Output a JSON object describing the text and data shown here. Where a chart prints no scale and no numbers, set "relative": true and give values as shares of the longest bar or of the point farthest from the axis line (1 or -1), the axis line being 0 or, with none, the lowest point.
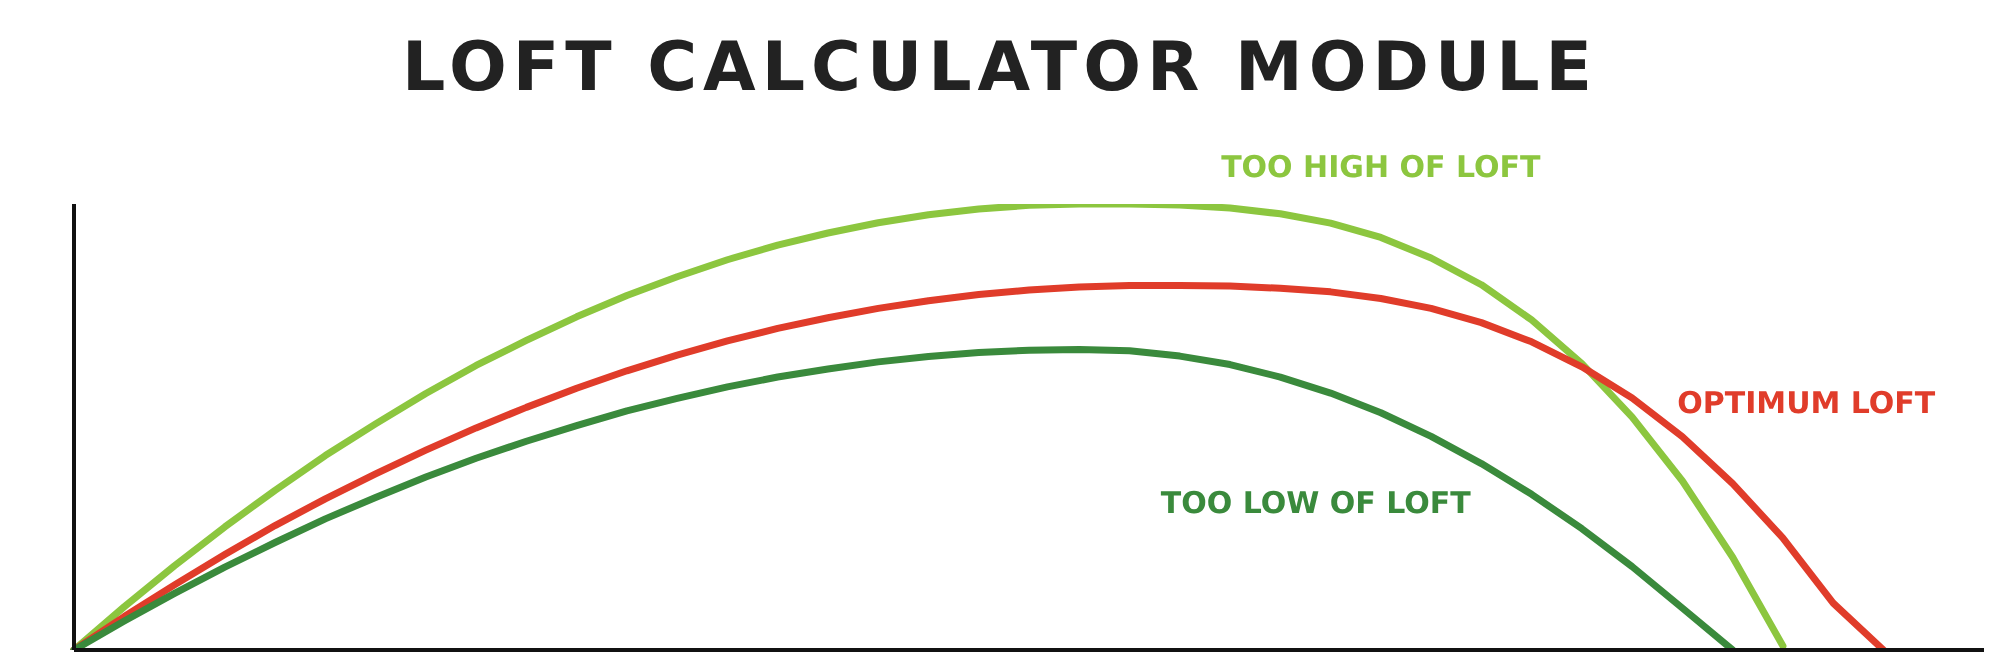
{
  "chart_data": {
    "type": "line",
    "title": "LOFT CALCULATOR MODULE",
    "relative": true,
    "legend": false,
    "grid": false,
    "marker": "none",
    "line_style": "solid",
    "categories": [
      null,
      null,
      null,
      null,
      null,
      null,
      null,
      null,
      null,
      null,
      null,
      null,
      null,
      null,
      null,
      null,
      null,
      null,
      null,
      null,
      null,
      null,
      null,
      null,
      null,
      null,
      null,
      null,
      null,
      null,
      null,
      null,
      null,
      null,
      null,
      null,
      null,
      null,
      null
    ],
    "series": [
      {
        "name": "TOO HIGH OF LOFT",
        "color": "#8cc63f",
        "values": [
          0,
          0.097,
          0.189,
          0.276,
          0.358,
          0.436,
          0.507,
          0.575,
          0.638,
          0.694,
          0.747,
          0.795,
          0.837,
          0.875,
          0.908,
          0.935,
          0.958,
          0.976,
          0.989,
          0.997,
          1,
          1,
          0.998,
          0.991,
          0.978,
          0.957,
          0.925,
          0.879,
          0.819,
          0.74,
          0.642,
          0.522,
          0.379,
          0.208,
          0.009,
          null,
          null,
          null,
          null
        ]
      },
      {
        "name": "OPTIMUM LOFT",
        "color": "#e03c2a",
        "values": [
          0,
          0.075,
          0.146,
          0.214,
          0.279,
          0.339,
          0.395,
          0.448,
          0.498,
          0.544,
          0.587,
          0.626,
          0.661,
          0.693,
          0.721,
          0.745,
          0.766,
          0.783,
          0.797,
          0.807,
          0.814,
          0.817,
          0.817,
          0.816,
          0.811,
          0.803,
          0.788,
          0.766,
          0.734,
          0.691,
          0.635,
          0.565,
          0.478,
          0.373,
          0.251,
          0.105,
          0,
          null,
          null
        ]
      },
      {
        "name": "TOO LOW OF LOFT",
        "color": "#3a8a3c",
        "values": [
          0,
          0.065,
          0.127,
          0.186,
          0.241,
          0.294,
          0.342,
          0.388,
          0.43,
          0.468,
          0.503,
          0.536,
          0.564,
          0.59,
          0.612,
          0.63,
          0.646,
          0.658,
          0.667,
          0.672,
          0.674,
          0.671,
          0.659,
          0.64,
          0.612,
          0.576,
          0.532,
          0.479,
          0.418,
          0.349,
          0.272,
          0.187,
          0.094,
          0,
          null,
          null,
          null,
          null,
          null
        ]
      }
    ]
  }
}
